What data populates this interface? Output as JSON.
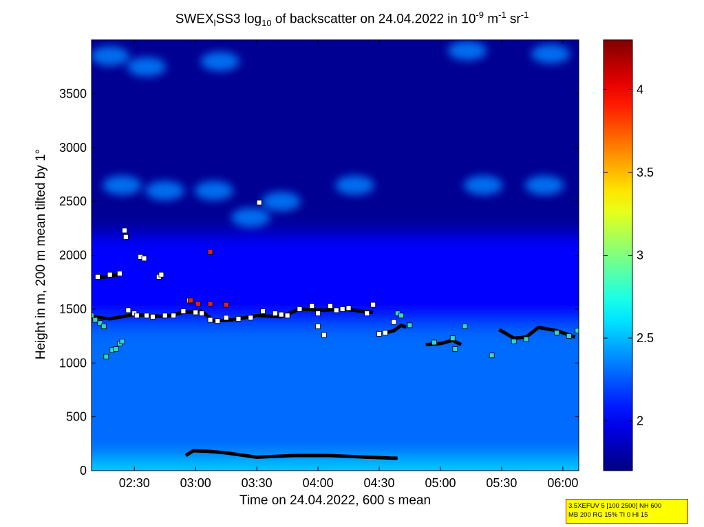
{
  "chart_data": [
    {
      "type": "heatmap",
      "title": {
        "part1": "SWEX",
        "part1_sub": "l",
        "part2": "SS3 log",
        "part2_sub": "10",
        "part3": " of backscatter on 24.04.2022 in 10",
        "sup1": "-9",
        "part4": " m",
        "sup2": "-1",
        "part5": " sr",
        "sup3": "-1"
      },
      "xlabel": "Time on 24.04.2022, 600 s mean",
      "ylabel": "Height in m, 200 m mean tilted by 1°",
      "x_unit": "hours",
      "xlim": [
        2.15,
        6.13
      ],
      "ylim": [
        0,
        4000
      ],
      "x_ticks": [
        2.5,
        3.0,
        3.5,
        4.0,
        4.5,
        5.0,
        5.5,
        6.0
      ],
      "x_tick_labels": [
        "02:30",
        "03:00",
        "03:30",
        "04:00",
        "04:30",
        "05:00",
        "05:30",
        "06:00"
      ],
      "y_ticks": [
        0,
        500,
        1000,
        1500,
        2000,
        2500,
        3000,
        3500
      ],
      "y_tick_labels": [
        "0",
        "500",
        "1000",
        "1500",
        "2000",
        "2500",
        "3000",
        "3500"
      ],
      "colorbar": {
        "limits": [
          1.7,
          4.3
        ],
        "ticks": [
          2,
          2.5,
          3,
          3.5,
          4
        ],
        "tick_labels": [
          "2",
          "2.5",
          "3",
          "3.5",
          "4"
        ],
        "colormap": "jet"
      },
      "grid": false,
      "field_approx": {
        "surface_layer_top_m": 100,
        "surface_value": 2.55,
        "boundary_layer_top_m": 1350,
        "boundary_layer_value": 2.3,
        "transition_top_m": 2200,
        "free_troposphere_value": 1.75,
        "cloud_patch_value": 2.35,
        "cloud_patches": [
          {
            "x": 2.4,
            "y": 2650
          },
          {
            "x": 2.75,
            "y": 2600
          },
          {
            "x": 3.15,
            "y": 2600
          },
          {
            "x": 3.45,
            "y": 2350
          },
          {
            "x": 3.7,
            "y": 2500
          },
          {
            "x": 4.3,
            "y": 2650
          },
          {
            "x": 5.35,
            "y": 2650
          },
          {
            "x": 5.85,
            "y": 2650
          },
          {
            "x": 2.3,
            "y": 3850
          },
          {
            "x": 2.6,
            "y": 3750
          },
          {
            "x": 3.2,
            "y": 3800
          },
          {
            "x": 5.22,
            "y": 3900
          },
          {
            "x": 5.9,
            "y": 3870
          }
        ]
      },
      "markers": {
        "white_layer_tops": [
          [
            2.2,
            1800
          ],
          [
            2.3,
            1820
          ],
          [
            2.38,
            1830
          ],
          [
            2.45,
            1490
          ],
          [
            2.5,
            1460
          ],
          [
            2.52,
            1440
          ],
          [
            2.55,
            1985
          ],
          [
            2.58,
            1970
          ],
          [
            2.6,
            1440
          ],
          [
            2.65,
            1430
          ],
          [
            2.7,
            1800
          ],
          [
            2.72,
            1820
          ],
          [
            2.75,
            1440
          ],
          [
            2.82,
            1440
          ],
          [
            2.9,
            1480
          ],
          [
            2.95,
            1580
          ],
          [
            3.0,
            1470
          ],
          [
            3.05,
            1460
          ],
          [
            3.12,
            1400
          ],
          [
            3.18,
            1390
          ],
          [
            3.25,
            1420
          ],
          [
            3.35,
            1410
          ],
          [
            3.45,
            1420
          ],
          [
            3.55,
            1480
          ],
          [
            3.65,
            1460
          ],
          [
            3.7,
            1450
          ],
          [
            3.75,
            1440
          ],
          [
            3.85,
            1500
          ],
          [
            3.95,
            1530
          ],
          [
            4.0,
            1460
          ],
          [
            4.05,
            1260
          ],
          [
            4.1,
            1530
          ],
          [
            4.15,
            1490
          ],
          [
            4.2,
            1500
          ],
          [
            4.25,
            1510
          ],
          [
            4.4,
            1460
          ],
          [
            4.45,
            1540
          ],
          [
            4.5,
            1270
          ],
          [
            4.55,
            1280
          ],
          [
            4.62,
            1380
          ],
          [
            3.52,
            2490
          ],
          [
            2.42,
            2230
          ],
          [
            2.43,
            2170
          ],
          [
            4.0,
            1340
          ]
        ],
        "cyan_layer_tops": [
          [
            2.15,
            1440
          ],
          [
            2.18,
            1400
          ],
          [
            2.22,
            1370
          ],
          [
            2.25,
            1340
          ],
          [
            2.27,
            1060
          ],
          [
            2.32,
            1120
          ],
          [
            2.35,
            1130
          ],
          [
            2.38,
            1180
          ],
          [
            2.4,
            1200
          ],
          [
            4.65,
            1460
          ],
          [
            4.68,
            1440
          ],
          [
            4.75,
            1350
          ],
          [
            4.95,
            1190
          ],
          [
            5.1,
            1230
          ],
          [
            5.2,
            1340
          ],
          [
            5.42,
            1070
          ],
          [
            5.6,
            1200
          ],
          [
            5.7,
            1220
          ],
          [
            5.95,
            1280
          ],
          [
            6.05,
            1250
          ],
          [
            6.12,
            1300
          ],
          [
            5.12,
            1130
          ]
        ],
        "red_markers": [
          [
            2.96,
            1580
          ],
          [
            3.02,
            1550
          ],
          [
            3.12,
            1550
          ],
          [
            3.25,
            1540
          ],
          [
            3.12,
            2030
          ]
        ],
        "black_layer_segments": [
          [
            [
              2.92,
              140
            ],
            [
              2.98,
              185
            ],
            [
              3.1,
              180
            ],
            [
              3.25,
              165
            ],
            [
              3.5,
              125
            ],
            [
              3.8,
              140
            ],
            [
              4.1,
              140
            ],
            [
              4.4,
              125
            ],
            [
              4.65,
              115
            ]
          ],
          [
            [
              2.15,
              1430
            ],
            [
              2.3,
              1410
            ],
            [
              2.5,
              1450
            ],
            [
              2.75,
              1430
            ],
            [
              2.9,
              1470
            ],
            [
              3.05,
              1480
            ],
            [
              3.15,
              1390
            ],
            [
              3.3,
              1400
            ],
            [
              3.5,
              1440
            ],
            [
              3.7,
              1430
            ],
            [
              3.85,
              1500
            ],
            [
              4.05,
              1490
            ],
            [
              4.2,
              1500
            ],
            [
              4.45,
              1470
            ]
          ],
          [
            [
              2.2,
              1790
            ],
            [
              2.38,
              1820
            ]
          ],
          [
            [
              4.55,
              1280
            ],
            [
              4.62,
              1300
            ],
            [
              4.68,
              1350
            ],
            [
              4.72,
              1330
            ]
          ],
          [
            [
              4.88,
              1170
            ],
            [
              5.0,
              1180
            ],
            [
              5.1,
              1210
            ],
            [
              5.17,
              1170
            ]
          ],
          [
            [
              5.48,
              1310
            ],
            [
              5.6,
              1230
            ],
            [
              5.7,
              1240
            ],
            [
              5.8,
              1330
            ],
            [
              5.95,
              1300
            ],
            [
              6.1,
              1240
            ]
          ]
        ]
      }
    }
  ],
  "info_box": {
    "line1": "3.5XEFUV 5 [100 2500] NH 600",
    "line2": "MB 200 RG 15% TI 0 HI 15"
  }
}
